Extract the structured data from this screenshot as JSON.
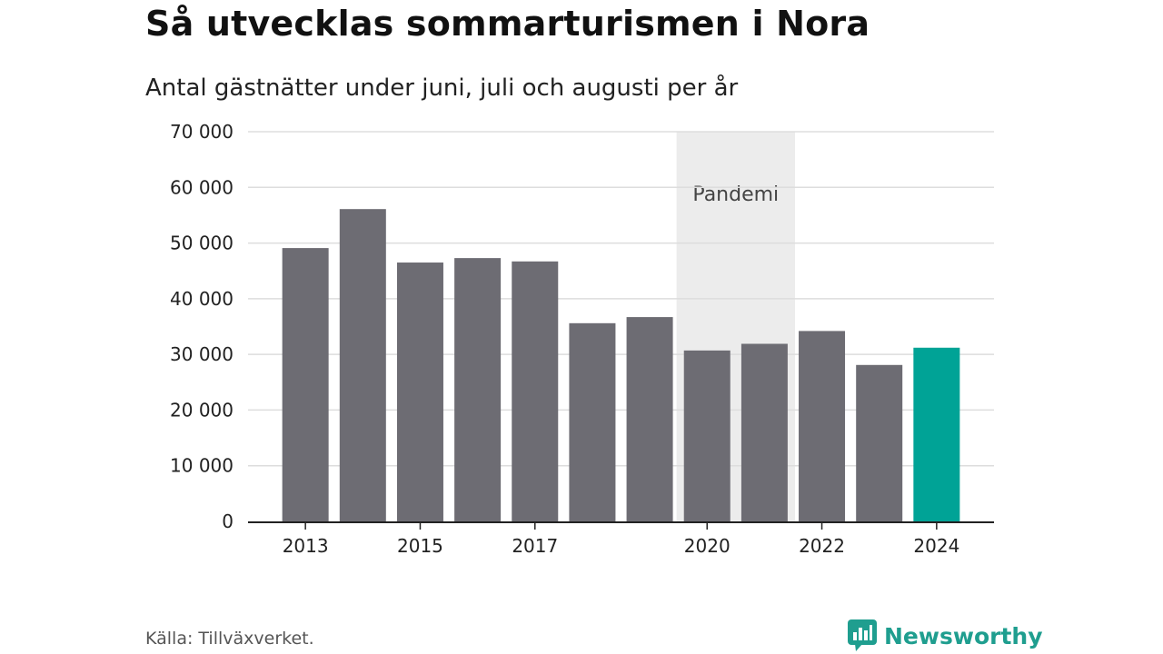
{
  "title": "Så utvecklas sommarturismen i Nora",
  "subtitle": "Antal gästnätter under juni, juli och augusti per år",
  "source": "Källa: Tillväxverket.",
  "brand": {
    "name": "Newsworthy",
    "icon": "newsworthy-logo-icon",
    "color": "#1f9e8f"
  },
  "colors": {
    "bar": "#6d6c73",
    "highlight": "#00a396",
    "shade": "#ececec",
    "grid": "#dddddd",
    "axis": "#222222"
  },
  "chart_data": {
    "type": "bar",
    "categories": [
      "2013",
      "2014",
      "2015",
      "2016",
      "2017",
      "2018",
      "2019",
      "2020",
      "2021",
      "2022",
      "2023",
      "2024"
    ],
    "values": [
      49100,
      56100,
      46500,
      47300,
      46700,
      35600,
      36700,
      30700,
      31900,
      34200,
      28100,
      31200
    ],
    "highlight_category": "2024",
    "x_tick_labels": [
      "2013",
      "2015",
      "2017",
      "2020",
      "2022",
      "2024"
    ],
    "ylim": [
      0,
      70000
    ],
    "y_ticks": [
      0,
      10000,
      20000,
      30000,
      40000,
      50000,
      60000,
      70000
    ],
    "y_tick_labels": [
      "0",
      "10 000",
      "20 000",
      "30 000",
      "40 000",
      "50 000",
      "60 000",
      "70 000"
    ],
    "grid": true,
    "shaded_region": {
      "from": "2020",
      "to": "2021",
      "label": "Pandemi"
    }
  }
}
